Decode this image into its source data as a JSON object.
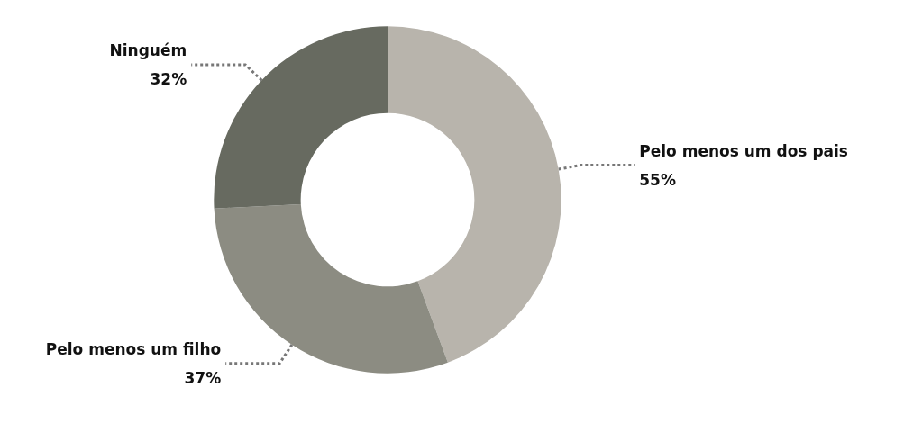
{
  "chart_data": {
    "type": "donut",
    "categories": [
      "Pelo menos um dos pais",
      "Pelo menos um filho",
      "Ninguém"
    ],
    "values": [
      55,
      37,
      32
    ],
    "value_labels": [
      "55%",
      "37%",
      "32%"
    ],
    "colors": [
      "#b8b4ac",
      "#8c8c82",
      "#676a60"
    ],
    "legend": false
  }
}
